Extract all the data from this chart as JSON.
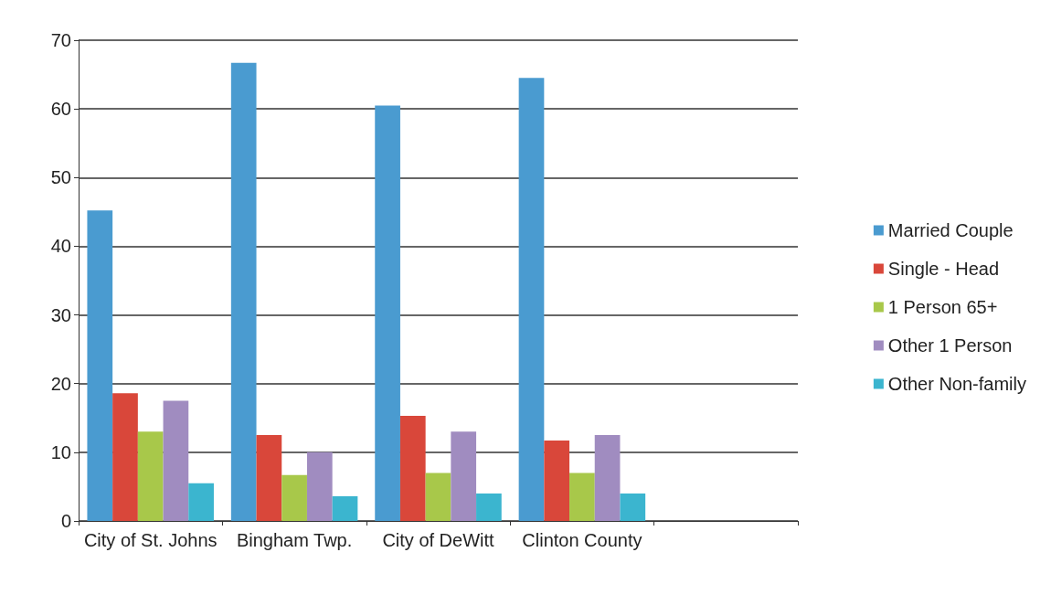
{
  "chart_data": {
    "type": "bar",
    "categories": [
      "City of St. Johns",
      "Bingham Twp.",
      "City of DeWitt",
      "Clinton County",
      null
    ],
    "series": [
      {
        "name": "Married Couple",
        "color": "#4a9bd0",
        "values": [
          45.2,
          66.7,
          60.5,
          64.5,
          null
        ]
      },
      {
        "name": "Single - Head",
        "color": "#d9473a",
        "values": [
          18.6,
          12.5,
          15.3,
          11.7,
          null
        ]
      },
      {
        "name": "1 Person 65+",
        "color": "#a8c84a",
        "values": [
          13,
          6.7,
          7,
          7,
          null
        ]
      },
      {
        "name": "Other 1 Person",
        "color": "#a08cc0",
        "values": [
          17.5,
          10,
          13,
          12.5,
          null
        ]
      },
      {
        "name": "Other Non-family",
        "color": "#3bb5cf",
        "values": [
          5.5,
          3.6,
          4,
          4,
          null
        ]
      }
    ],
    "ylim": [
      0,
      70
    ],
    "yticks": [
      0,
      10,
      20,
      30,
      40,
      50,
      60,
      70
    ],
    "grid": "y",
    "legend": "right"
  }
}
